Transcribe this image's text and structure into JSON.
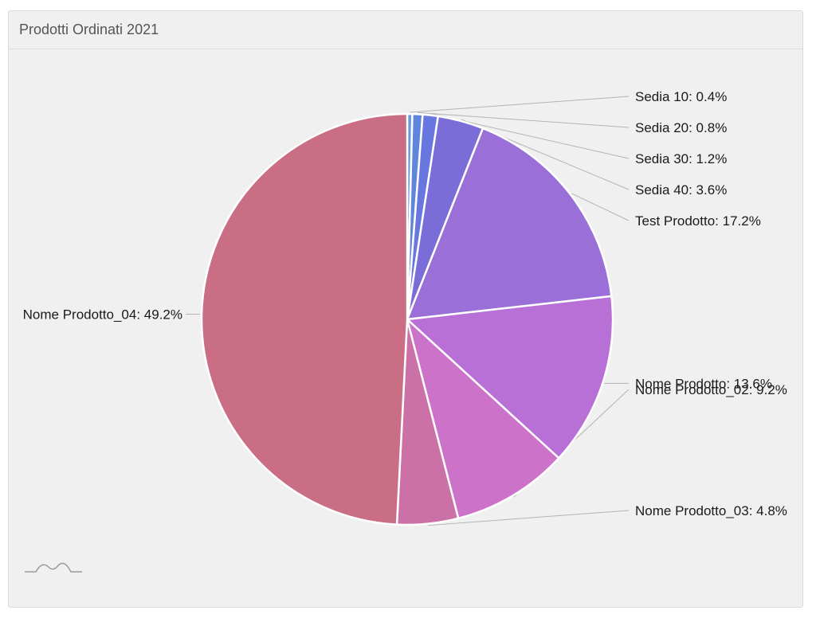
{
  "panel": {
    "title": "Prodotti Ordinati 2021"
  },
  "chart_data": {
    "type": "pie",
    "title": "Prodotti Ordinati 2021",
    "slices": [
      {
        "label": "Sedia 10",
        "value": 0.4,
        "display": "Sedia 10: 0.4%",
        "color": "#6b9bd6"
      },
      {
        "label": "Sedia 20",
        "value": 0.8,
        "display": "Sedia 20: 0.8%",
        "color": "#5f86dc"
      },
      {
        "label": "Sedia 30",
        "value": 1.2,
        "display": "Sedia 30: 1.2%",
        "color": "#6877e0"
      },
      {
        "label": "Sedia 40",
        "value": 3.6,
        "display": "Sedia 40: 3.6%",
        "color": "#7b6dd8"
      },
      {
        "label": "Test Prodotto",
        "value": 17.2,
        "display": "Test Prodotto: 17.2%",
        "color": "#9a6fd8"
      },
      {
        "label": "Nome Prodotto",
        "value": 13.6,
        "display": "Nome Prodotto: 13.6%",
        "color": "#b86fd6"
      },
      {
        "label": "Nome Prodotto_02",
        "value": 9.2,
        "display": "Nome Prodotto_02: 9.2%",
        "color": "#cc72c8"
      },
      {
        "label": "Nome Prodotto_03",
        "value": 4.8,
        "display": "Nome Prodotto_03: 4.8%",
        "color": "#cc70a8"
      },
      {
        "label": "Nome Prodotto_04",
        "value": 49.2,
        "display": "Nome Prodotto_04: 49.2%",
        "color": "#ca6e86"
      }
    ]
  },
  "icons": {
    "watermark": "chart-watermark-icon"
  }
}
